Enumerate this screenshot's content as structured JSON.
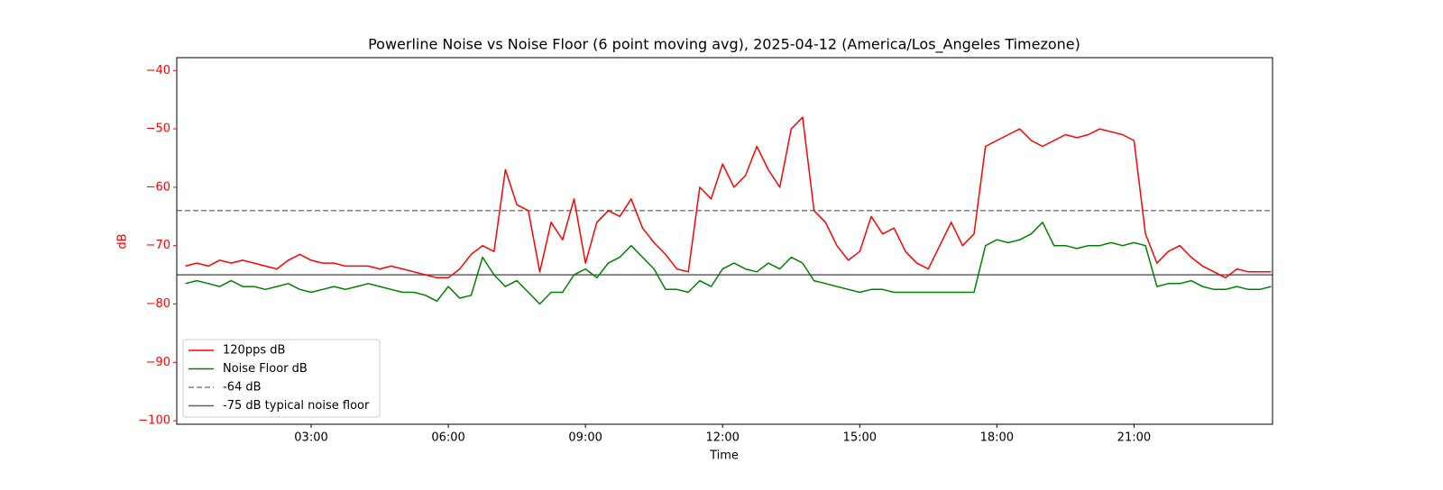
{
  "chart_data": {
    "type": "line",
    "title": "Powerline Noise vs Noise Floor (6 point moving avg), 2025-04-12 (America/Los_Angeles Timezone)",
    "xlabel": "Time",
    "ylabel": "dB",
    "y_axis_color": "#ff0000",
    "x": [
      0.25,
      0.5,
      0.75,
      1,
      1.25,
      1.5,
      1.75,
      2,
      2.25,
      2.5,
      2.75,
      3,
      3.25,
      3.5,
      3.75,
      4,
      4.25,
      4.5,
      4.75,
      5,
      5.25,
      5.5,
      5.75,
      6,
      6.25,
      6.5,
      6.75,
      7,
      7.25,
      7.5,
      7.75,
      8,
      8.25,
      8.5,
      8.75,
      9,
      9.25,
      9.5,
      9.75,
      10,
      10.25,
      10.5,
      10.75,
      11,
      11.25,
      11.5,
      11.75,
      12,
      12.25,
      12.5,
      12.75,
      13,
      13.25,
      13.5,
      13.75,
      14,
      14.25,
      14.5,
      14.75,
      15,
      15.25,
      15.5,
      15.75,
      16,
      16.25,
      16.5,
      16.75,
      17,
      17.25,
      17.5,
      17.75,
      18,
      18.25,
      18.5,
      18.75,
      19,
      19.25,
      19.5,
      19.75,
      20,
      20.25,
      20.5,
      20.75,
      21,
      21.25,
      21.5,
      21.75,
      22,
      22.25,
      22.5,
      22.75,
      23,
      23.25,
      23.5,
      23.75,
      24
    ],
    "series": [
      {
        "name": "120pps dB",
        "color": "#ff0000",
        "values": [
          -73.5,
          -73,
          -73.5,
          -72.5,
          -73,
          -72.5,
          -73,
          -73.5,
          -74,
          -72.5,
          -71.5,
          -72.5,
          -73,
          -73,
          -73.5,
          -73.5,
          -73.5,
          -74,
          -73.5,
          -74,
          -74.5,
          -75,
          -75.5,
          -75.5,
          -74,
          -71.5,
          -70,
          -71,
          -57,
          -63,
          -64,
          -74.5,
          -66,
          -69,
          -62,
          -73,
          -66,
          -64,
          -65,
          -62,
          -67,
          -69.5,
          -71.5,
          -74,
          -74.5,
          -60,
          -62,
          -56,
          -60,
          -58,
          -53,
          -57,
          -60,
          -50,
          -48,
          -64,
          -66,
          -70,
          -72.5,
          -71,
          -65,
          -68,
          -67,
          -71,
          -73,
          -74,
          -70,
          -66,
          -70,
          -68,
          -53,
          -52,
          -51,
          -50,
          -52,
          -53,
          -52,
          -51,
          -51.5,
          -51,
          -50,
          -50.5,
          -51,
          -52,
          -68,
          -73,
          -71,
          -70,
          -72,
          -73.5,
          -74.5,
          -75.5,
          -74,
          -74.5,
          -74.5,
          -74.5
        ]
      },
      {
        "name": "Noise Floor dB",
        "color": "#008000",
        "values": [
          -76.5,
          -76,
          -76.5,
          -77,
          -76,
          -77,
          -77,
          -77.5,
          -77,
          -76.5,
          -77.5,
          -78,
          -77.5,
          -77,
          -77.5,
          -77,
          -76.5,
          -77,
          -77.5,
          -78,
          -78,
          -78.5,
          -79.5,
          -77,
          -79,
          -78.5,
          -72,
          -75,
          -77,
          -76,
          -78,
          -80,
          -78,
          -78,
          -75,
          -74,
          -75.5,
          -73,
          -72,
          -70,
          -72,
          -74,
          -77.5,
          -77.5,
          -78,
          -76,
          -77,
          -74,
          -73,
          -74,
          -74.5,
          -73,
          -74,
          -72,
          -73,
          -76,
          -76.5,
          -77,
          -77.5,
          -78,
          -77.5,
          -77.5,
          -78,
          -78,
          -78,
          -78,
          -78,
          -78,
          -78,
          -78,
          -70,
          -69,
          -69.5,
          -69,
          -68,
          -66,
          -70,
          -70,
          -70.5,
          -70,
          -70,
          -69.5,
          -70,
          -69.5,
          -70,
          -77,
          -76.5,
          -76.5,
          -76,
          -77,
          -77.5,
          -77.5,
          -77,
          -77.5,
          -77.5,
          -77
        ]
      }
    ],
    "hlines": [
      {
        "name": "-64 dB",
        "value": -64,
        "color": "#808080",
        "dash": "dashed"
      },
      {
        "name": "-75 dB typical noise floor",
        "value": -75,
        "color": "#606060",
        "dash": "solid"
      }
    ],
    "xlim": [
      0.06,
      24.03
    ],
    "ylim": [
      -100.6,
      -37.8
    ],
    "xticks": [
      {
        "value": 3,
        "label": "03:00"
      },
      {
        "value": 6,
        "label": "06:00"
      },
      {
        "value": 9,
        "label": "09:00"
      },
      {
        "value": 12,
        "label": "12:00"
      },
      {
        "value": 15,
        "label": "15:00"
      },
      {
        "value": 18,
        "label": "18:00"
      },
      {
        "value": 21,
        "label": "21:00"
      }
    ],
    "yticks": [
      {
        "value": -40,
        "label": "−40"
      },
      {
        "value": -50,
        "label": "−50"
      },
      {
        "value": -60,
        "label": "−60"
      },
      {
        "value": -70,
        "label": "−70"
      },
      {
        "value": -80,
        "label": "−80"
      },
      {
        "value": -90,
        "label": "−90"
      },
      {
        "value": -100,
        "label": "−100"
      }
    ],
    "legend": "lower left"
  }
}
